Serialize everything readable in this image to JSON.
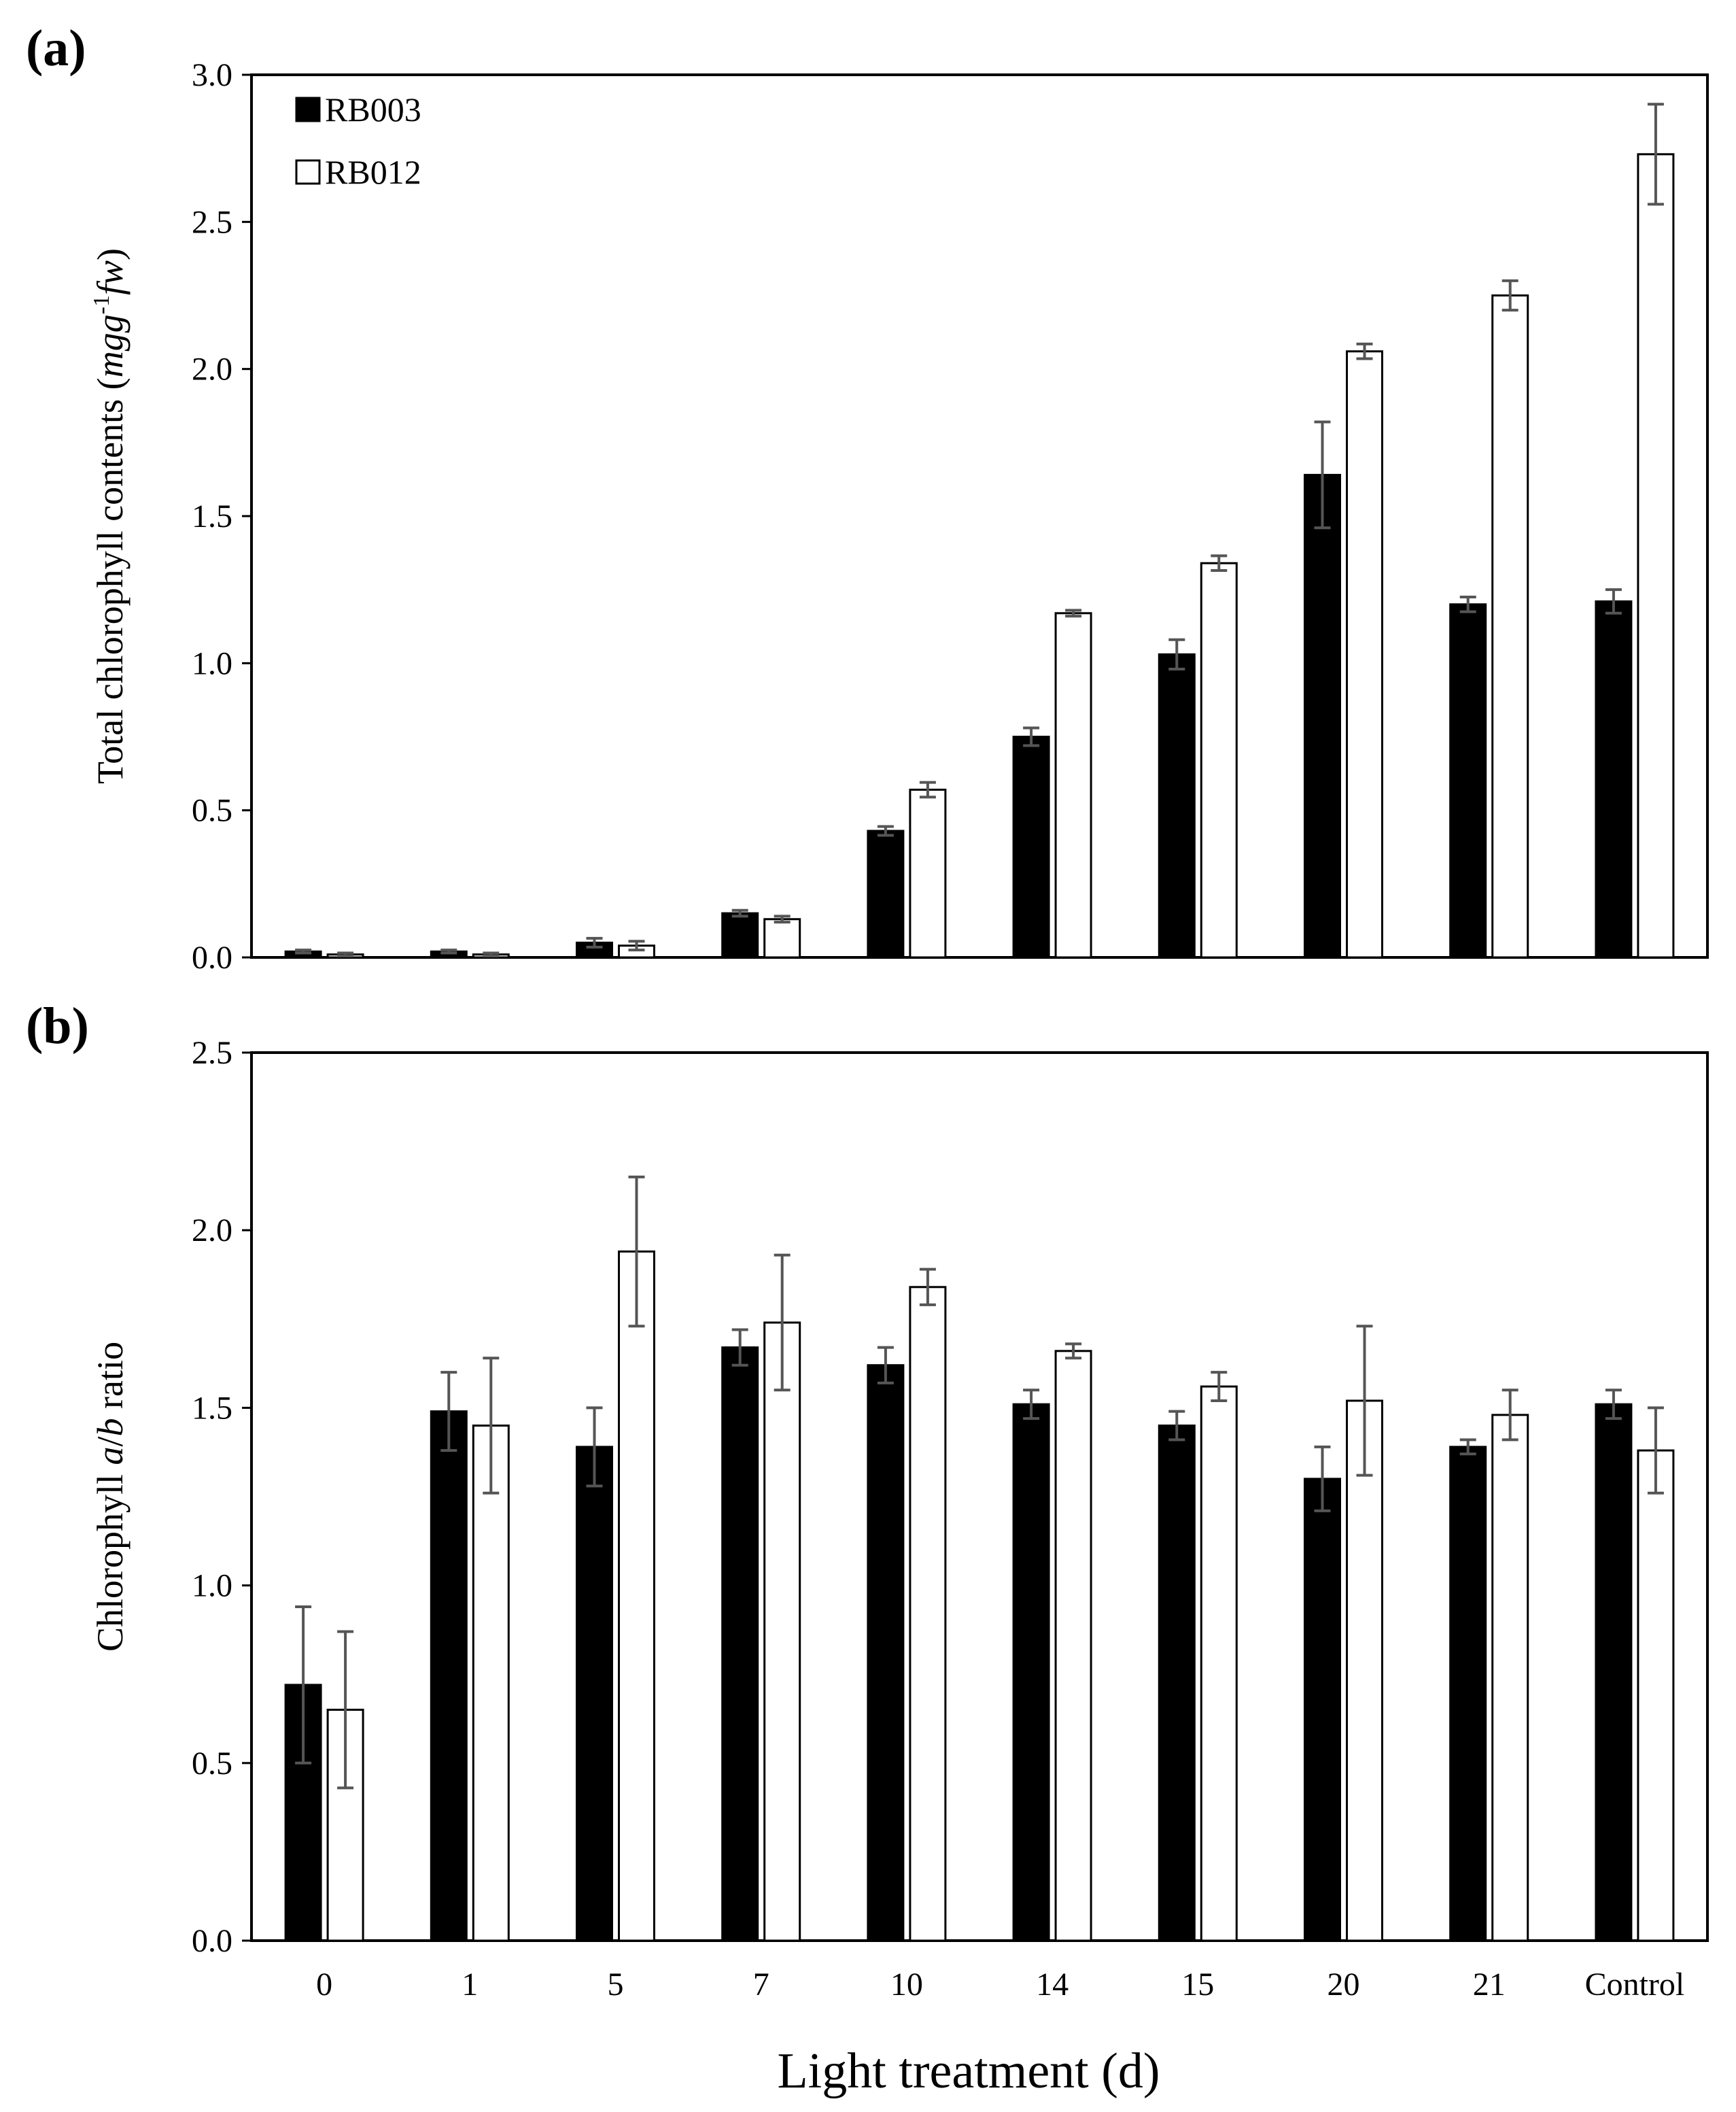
{
  "figure": {
    "xlabel": "Light treatment (d)",
    "categories": [
      "0",
      "1",
      "5",
      "7",
      "10",
      "14",
      "15",
      "20",
      "21",
      "Control"
    ]
  },
  "chart_data": [
    {
      "panel_label": "(a)",
      "type": "bar",
      "ylabel": {
        "text": "Total chlorophyll contents (",
        "italic_main": "mgg",
        "superscript": "-1",
        "italic_tail": "fw",
        "close": ")"
      },
      "ylim": [
        0,
        3.0
      ],
      "yticks": [
        "0.0",
        "0.5",
        "1.0",
        "1.5",
        "2.0",
        "2.5",
        "3.0"
      ],
      "legend_position": "top-left",
      "categories": [
        "0",
        "1",
        "5",
        "7",
        "10",
        "14",
        "15",
        "20",
        "21",
        "Control"
      ],
      "series": [
        {
          "name": "RB003",
          "fill": "#000000",
          "values": [
            0.02,
            0.02,
            0.05,
            0.15,
            0.43,
            0.75,
            1.03,
            1.64,
            1.2,
            1.21
          ],
          "errors": [
            0.005,
            0.005,
            0.015,
            0.01,
            0.015,
            0.03,
            0.05,
            0.18,
            0.025,
            0.04
          ]
        },
        {
          "name": "RB012",
          "fill": "#ffffff",
          "values": [
            0.01,
            0.01,
            0.04,
            0.13,
            0.57,
            1.17,
            1.34,
            2.06,
            2.25,
            2.73
          ],
          "errors": [
            0.005,
            0.005,
            0.015,
            0.01,
            0.025,
            0.01,
            0.025,
            0.025,
            0.05,
            0.17
          ]
        }
      ]
    },
    {
      "panel_label": "(b)",
      "type": "bar",
      "ylabel": {
        "text": "Chlorophyll ",
        "italic_main": "a",
        "slash": "/",
        "italic_tail": "b",
        "close": " ratio"
      },
      "ylim": [
        0,
        2.5
      ],
      "yticks": [
        "0.0",
        "0.5",
        "1.0",
        "1.5",
        "2.0",
        "2.5"
      ],
      "categories": [
        "0",
        "1",
        "5",
        "7",
        "10",
        "14",
        "15",
        "20",
        "21",
        "Control"
      ],
      "series": [
        {
          "name": "RB003",
          "fill": "#000000",
          "values": [
            0.72,
            1.49,
            1.39,
            1.67,
            1.62,
            1.51,
            1.45,
            1.3,
            1.39,
            1.51
          ],
          "errors": [
            0.22,
            0.11,
            0.11,
            0.05,
            0.05,
            0.04,
            0.04,
            0.09,
            0.02,
            0.04
          ]
        },
        {
          "name": "RB012",
          "fill": "#ffffff",
          "values": [
            0.65,
            1.45,
            1.94,
            1.74,
            1.84,
            1.66,
            1.56,
            1.52,
            1.48,
            1.38
          ],
          "errors": [
            0.22,
            0.19,
            0.21,
            0.19,
            0.05,
            0.02,
            0.04,
            0.21,
            0.07,
            0.12
          ]
        }
      ]
    }
  ]
}
